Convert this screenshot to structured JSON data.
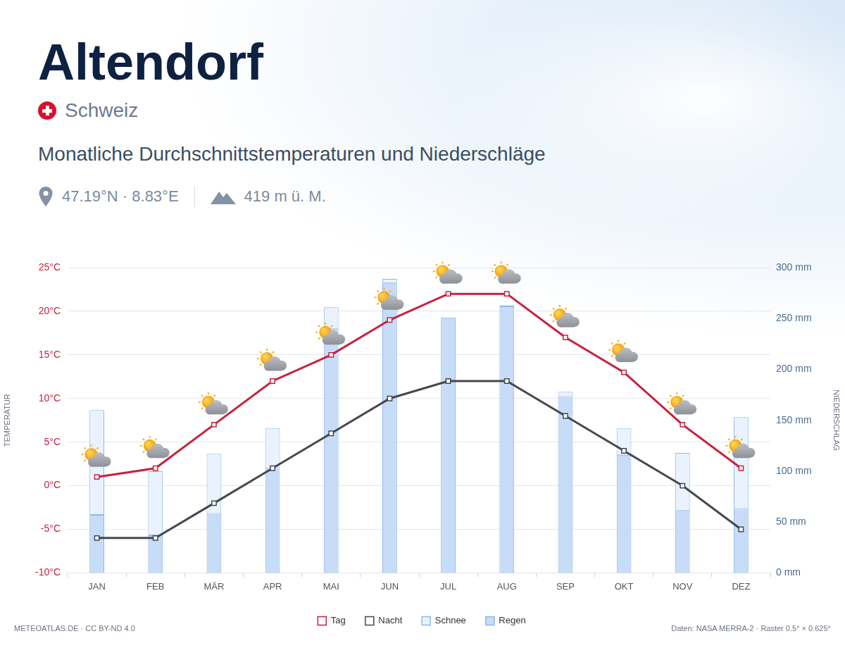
{
  "chart_data": {
    "type": "bar",
    "title": "Altendorf",
    "country": "Schweiz",
    "subtitle": "Monatliche Durchschnittstemperaturen und Niederschläge",
    "coordinates": "47.19°N · 8.83°E",
    "elevation": "419 m ü. M.",
    "credit": "METEOATLAS.DE · CC BY-ND 4.0",
    "source": "Daten: NASA MERRA-2 · Raster 0.5° × 0.625°",
    "ylabel": "TEMPERATUR",
    "y2label": "NIEDERSCHLAG",
    "categories": [
      "JAN",
      "FEB",
      "MÄR",
      "APR",
      "MAI",
      "JUN",
      "JUL",
      "AUG",
      "SEP",
      "OKT",
      "NOV",
      "DEZ"
    ],
    "series": [
      {
        "name": "Tag",
        "type": "line",
        "color": "#c8203f",
        "marker": "square",
        "line_style": "solid",
        "values": [
          1,
          2,
          7,
          12,
          15,
          19,
          22,
          22,
          17,
          13,
          7,
          2
        ]
      },
      {
        "name": "Nacht",
        "type": "line",
        "color": "#45484d",
        "marker": "square",
        "line_style": "solid",
        "values": [
          -6,
          -6,
          -2,
          2,
          6,
          10,
          12,
          12,
          8,
          4,
          0,
          -5
        ]
      },
      {
        "name": "Schnee",
        "type": "bar",
        "axis": "y2",
        "color": "#eaf3fd",
        "values": [
          103,
          63,
          59,
          39,
          21,
          4,
          0,
          1,
          5,
          26,
          57,
          90
        ]
      },
      {
        "name": "Regen",
        "type": "bar",
        "axis": "y2",
        "color": "#c6dcf7",
        "values": [
          57,
          37,
          58,
          103,
          240,
          285,
          251,
          262,
          173,
          116,
          61,
          63
        ]
      }
    ],
    "ylim": [
      -10,
      25
    ],
    "yticks": [
      {
        "value": -10,
        "label": "-10°C"
      },
      {
        "value": -5,
        "label": "-5°C"
      },
      {
        "value": 0,
        "label": "0°C"
      },
      {
        "value": 5,
        "label": "5°C"
      },
      {
        "value": 10,
        "label": "10°C"
      },
      {
        "value": 15,
        "label": "15°C"
      },
      {
        "value": 20,
        "label": "20°C"
      },
      {
        "value": 25,
        "label": "25°C"
      }
    ],
    "y2lim": [
      0,
      300
    ],
    "y2ticks": [
      {
        "value": 0,
        "label": "0 mm"
      },
      {
        "value": 50,
        "label": "50 mm"
      },
      {
        "value": 100,
        "label": "100 mm"
      },
      {
        "value": 150,
        "label": "150 mm"
      },
      {
        "value": 200,
        "label": "200 mm"
      },
      {
        "value": 250,
        "label": "250 mm"
      },
      {
        "value": 300,
        "label": "300 mm"
      }
    ],
    "stacked": true,
    "grid": true,
    "legend": "bottom"
  }
}
